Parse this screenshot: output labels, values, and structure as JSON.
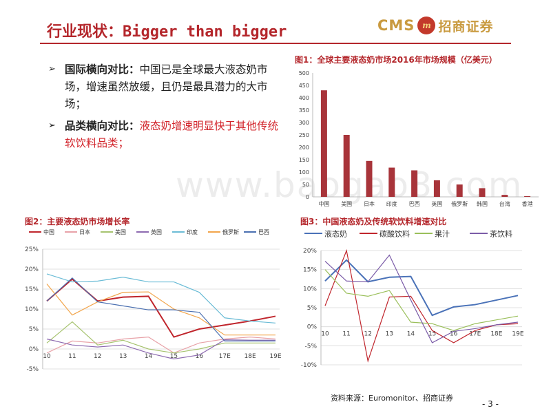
{
  "header": {
    "title": "行业现状：Bigger than bigger",
    "logo_cms": "CMS",
    "logo_mark": "m",
    "logo_cn": "招商证券"
  },
  "bullets": [
    {
      "head": "国际横向对比：",
      "body": "中国已是全球最大液态奶市场，增速虽然放缓，且仍是最具潜力的大市场；"
    },
    {
      "head": "品类横向对比：",
      "body": "液态奶增速明显快于其他传统软饮料品类；"
    }
  ],
  "watermark": "www.baogao8.com",
  "footer": {
    "source": "资料来源：Euromonitor、招商证券",
    "page": "- 3 -"
  },
  "colors": {
    "brand_red": "#b4262b",
    "bar_red": "#a8343a",
    "gold": "#c99a3f"
  },
  "chart_data": [
    {
      "type": "bar",
      "caption": "图1：全球主要液态奶市场2016年市场规模（亿美元）",
      "categories": [
        "中国",
        "美国",
        "日本",
        "印度",
        "巴西",
        "英国",
        "俄罗斯",
        "韩国",
        "台湾",
        "香港"
      ],
      "values": [
        430,
        250,
        145,
        118,
        107,
        67,
        50,
        35,
        8,
        3
      ],
      "ylim": [
        0,
        500
      ],
      "yticks": [
        "0",
        "50",
        "100",
        "150",
        "200",
        "250",
        "300",
        "350",
        "400",
        "450",
        "500"
      ],
      "grid": false
    },
    {
      "type": "line",
      "caption": "图2：主要液态奶市场增长率",
      "x": [
        "10",
        "11",
        "12",
        "13",
        "14",
        "15",
        "16",
        "17E",
        "18E",
        "19E"
      ],
      "ylim": [
        -5,
        25
      ],
      "yticks": [
        "-5%",
        "0%",
        "5%",
        "10%",
        "15%",
        "20%",
        "25%"
      ],
      "legend": "top",
      "series": [
        {
          "name": "中国",
          "color": "#c0262d",
          "values": [
            12,
            17.5,
            12,
            13,
            13.2,
            3,
            5,
            6,
            7,
            8.2
          ]
        },
        {
          "name": "日本",
          "color": "#e8a2a8",
          "values": [
            -1,
            2,
            1.5,
            2.5,
            3,
            -1,
            1.5,
            2.5,
            3,
            2.5
          ]
        },
        {
          "name": "美国",
          "color": "#a6c36f",
          "values": [
            1.5,
            6.8,
            1,
            2.2,
            0,
            -1,
            0,
            1.5,
            1.5,
            1.5
          ]
        },
        {
          "name": "英国",
          "color": "#8d6ab0",
          "values": [
            2.5,
            1,
            0.5,
            1,
            -1,
            -2.5,
            -1.5,
            2.3,
            2.2,
            2.2
          ]
        },
        {
          "name": "印度",
          "color": "#6bbcd6",
          "values": [
            18.8,
            16.8,
            17,
            18,
            16.8,
            16.8,
            14.2,
            7.8,
            7,
            6.5
          ]
        },
        {
          "name": "俄罗斯",
          "color": "#f2a54b",
          "values": [
            16.3,
            8.5,
            11.8,
            14.2,
            14.3,
            10,
            7.8,
            3.5,
            3.5,
            3.5
          ]
        },
        {
          "name": "巴西",
          "color": "#4a6fb0",
          "values": [
            12,
            17.8,
            11.8,
            10.8,
            9.8,
            9.8,
            9.2,
            2,
            2,
            2
          ]
        }
      ]
    },
    {
      "type": "line",
      "caption": "图3：中国液态奶及传统软饮料增速对比",
      "x": [
        "10",
        "11",
        "12",
        "13",
        "14",
        "15",
        "16",
        "17E",
        "18E",
        "19E"
      ],
      "ylim": [
        -10,
        20
      ],
      "yticks": [
        "-10%",
        "-5%",
        "0%",
        "5%",
        "10%",
        "15%",
        "20%"
      ],
      "legend": "top",
      "series": [
        {
          "name": "液态奶",
          "color": "#4a72b8",
          "values": [
            12,
            17.5,
            11.8,
            13,
            13.2,
            3,
            5.2,
            5.8,
            7,
            8.2
          ]
        },
        {
          "name": "碳酸饮料",
          "color": "#c0262d",
          "values": [
            5.5,
            20,
            -9,
            7.8,
            8,
            -1,
            -4.2,
            -1,
            0.5,
            0.8
          ]
        },
        {
          "name": "果汁",
          "color": "#9abf5a",
          "values": [
            15,
            8.8,
            8,
            9.5,
            1.2,
            0.8,
            -1,
            0.8,
            1.8,
            2.8
          ]
        },
        {
          "name": "茶饮料",
          "color": "#7b5ca8",
          "values": [
            17.2,
            12,
            11.8,
            18.8,
            7,
            -4.2,
            -1.2,
            -0.5,
            0.5,
            1.2
          ]
        }
      ]
    }
  ]
}
